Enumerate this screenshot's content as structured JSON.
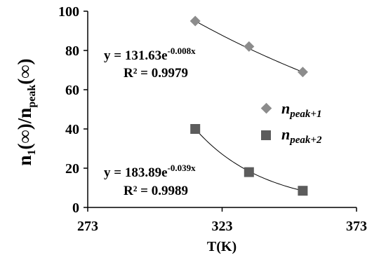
{
  "chart_data": {
    "type": "scatter",
    "xlabel": "T(K)",
    "ylabel": {
      "main_1": "n",
      "sub_1": "1",
      "inf_1": "(∞)",
      "slash": "/",
      "main_2": "n",
      "sub_2": "peak",
      "inf_2": "(∞)"
    },
    "xlim": [
      273,
      373
    ],
    "ylim": [
      0,
      100
    ],
    "x_ticks": [
      "273",
      "323",
      "373"
    ],
    "y_ticks": [
      "0",
      "20",
      "40",
      "60",
      "80",
      "100"
    ],
    "grid": false,
    "legend_position": "right",
    "series": [
      {
        "name": {
          "main": "n",
          "sub": "peak+1"
        },
        "marker": "diamond",
        "color": "#8c8c8c",
        "x": [
          313,
          333,
          353
        ],
        "y": [
          95,
          82,
          69
        ],
        "trendline": {
          "equation": {
            "prefix": "y = 131.63e",
            "exponent": "-0.008x"
          },
          "r2": "R² = 0.9979",
          "a": 131.63,
          "b": -0.008
        }
      },
      {
        "name": {
          "main": "n",
          "sub": "peak+2"
        },
        "marker": "square",
        "color": "#5c5c5c",
        "x": [
          313,
          333,
          353
        ],
        "y": [
          40,
          18,
          8.5
        ],
        "trendline": {
          "equation": {
            "prefix": "y = 183.89e",
            "exponent": "-0.039x"
          },
          "r2": "R² = 0.9989",
          "a": 183.89,
          "b": -0.039
        }
      }
    ]
  }
}
